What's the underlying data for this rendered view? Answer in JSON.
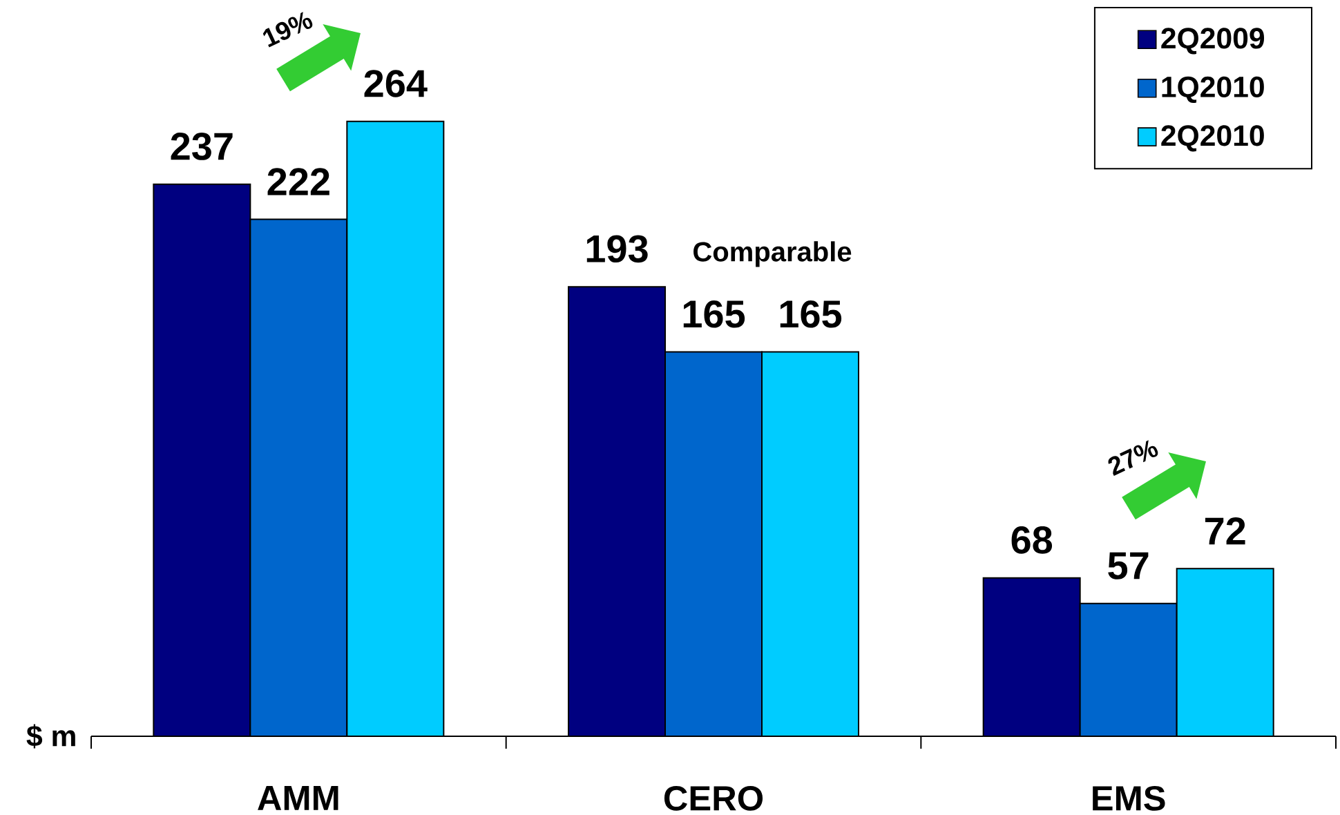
{
  "chart_data": {
    "type": "bar",
    "categories": [
      "AMM",
      "CERO",
      "EMS"
    ],
    "series": [
      {
        "name": "2Q2009",
        "color": "#000080",
        "values": [
          237,
          193,
          68
        ]
      },
      {
        "name": "1Q2010",
        "color": "#0066cc",
        "values": [
          222,
          165,
          57
        ]
      },
      {
        "name": "2Q2010",
        "color": "#00ccff",
        "values": [
          264,
          165,
          72
        ]
      }
    ],
    "ylabel": "$ m",
    "data_labels": true,
    "legend": "top right",
    "annotations": [
      "19%",
      "Comparable",
      "27%"
    ]
  }
}
